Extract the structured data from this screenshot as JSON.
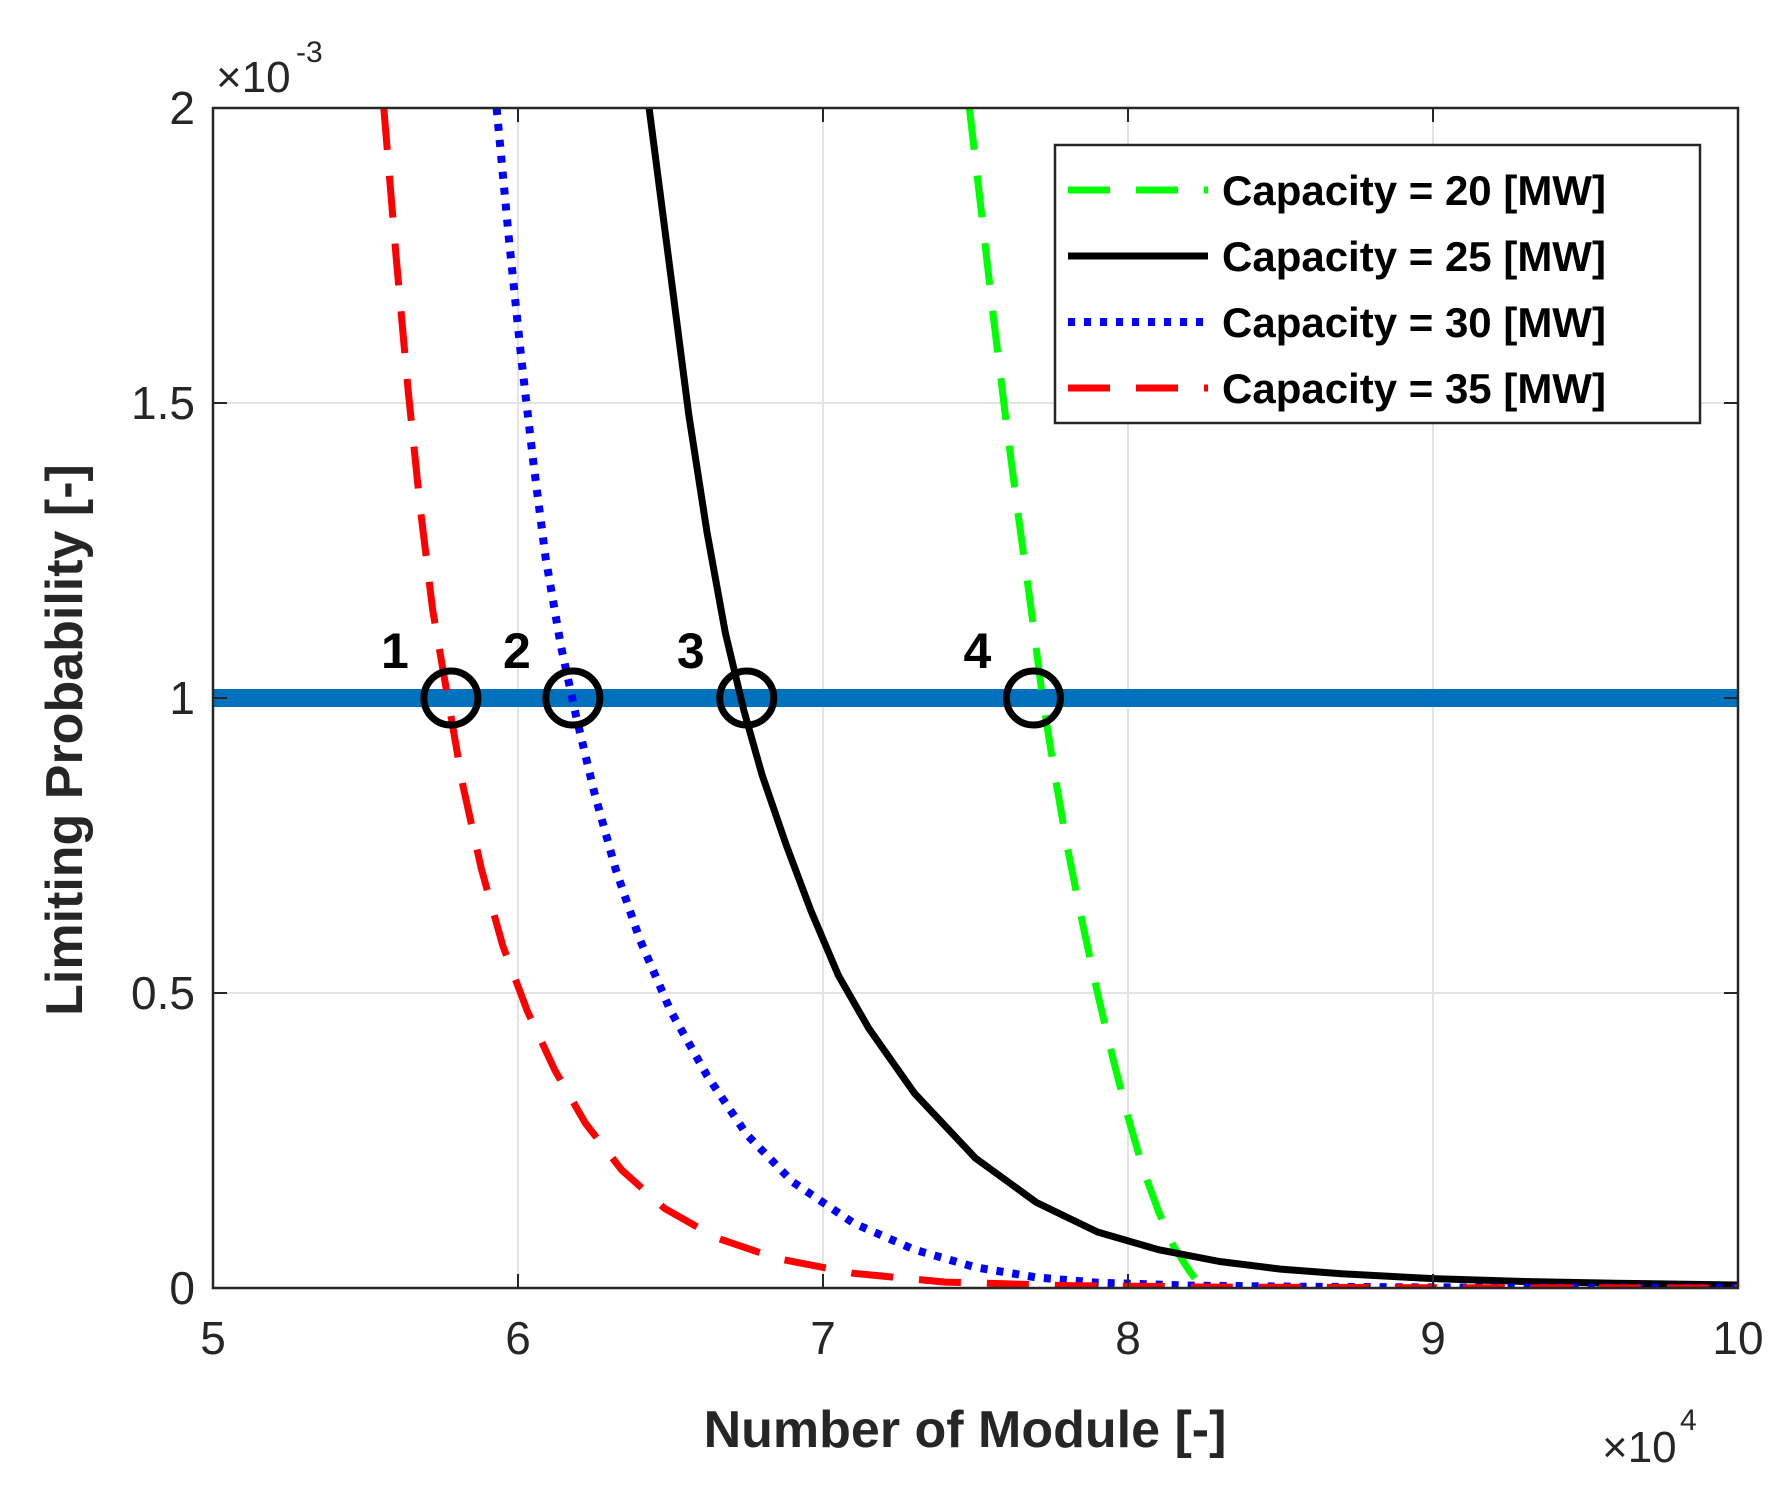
{
  "chart_data": {
    "type": "line",
    "title": "",
    "xlabel": "Number of Module [-]",
    "ylabel": "Limiting Probability [-]",
    "x_multiplier_label": "×10",
    "x_multiplier_exp": "4",
    "y_multiplier_label": "×10",
    "y_multiplier_exp": "-3",
    "xlim": [
      5,
      10
    ],
    "ylim": [
      0,
      2
    ],
    "x_ticks": [
      5,
      6,
      7,
      8,
      9,
      10
    ],
    "x_tick_labels": [
      "5",
      "6",
      "7",
      "8",
      "9",
      "10"
    ],
    "y_ticks": [
      0,
      0.5,
      1,
      1.5,
      2
    ],
    "y_tick_labels": [
      "0",
      "0.5",
      "1",
      "1.5",
      "2"
    ],
    "grid": true,
    "legend_position": "top-right",
    "reference_line": {
      "y": 1.0,
      "color": "#0072BD"
    },
    "series": [
      {
        "name": "Capacity = 20 [MW]",
        "color": "#00FF00",
        "style": "dashed",
        "x": [
          7.48,
          7.52,
          7.56,
          7.6,
          7.64,
          7.68,
          7.72,
          7.76,
          7.8,
          7.85,
          7.9,
          7.95,
          8.0,
          8.05,
          8.1,
          8.15,
          8.2,
          8.235,
          8.26
        ],
        "y": [
          2.0,
          1.82,
          1.64,
          1.47,
          1.31,
          1.16,
          1.0,
          0.87,
          0.75,
          0.62,
          0.5,
          0.39,
          0.29,
          0.2,
          0.13,
          0.07,
          0.03,
          0.005,
          0.0
        ]
      },
      {
        "name": "Capacity = 25 [MW]",
        "color": "#000000",
        "style": "solid",
        "x": [
          6.43,
          6.5,
          6.56,
          6.62,
          6.68,
          6.74,
          6.8,
          6.88,
          6.96,
          7.05,
          7.15,
          7.3,
          7.5,
          7.7,
          7.9,
          8.1,
          8.3,
          8.5,
          8.7,
          9.0,
          9.3,
          9.6,
          10.0
        ],
        "y": [
          2.0,
          1.72,
          1.48,
          1.28,
          1.11,
          0.98,
          0.87,
          0.75,
          0.64,
          0.53,
          0.44,
          0.33,
          0.22,
          0.145,
          0.095,
          0.065,
          0.045,
          0.032,
          0.024,
          0.016,
          0.011,
          0.008,
          0.005
        ]
      },
      {
        "name": "Capacity = 30 [MW]",
        "color": "#0000FF",
        "style": "dotted",
        "x": [
          5.93,
          5.97,
          6.01,
          6.05,
          6.09,
          6.14,
          6.19,
          6.25,
          6.32,
          6.4,
          6.5,
          6.62,
          6.75,
          6.9,
          7.1,
          7.3,
          7.5,
          7.7,
          7.9,
          8.2,
          8.6,
          9.0,
          9.5,
          10.0
        ],
        "y": [
          2.0,
          1.78,
          1.58,
          1.4,
          1.24,
          1.09,
          0.97,
          0.84,
          0.71,
          0.59,
          0.47,
          0.36,
          0.26,
          0.18,
          0.11,
          0.065,
          0.035,
          0.018,
          0.009,
          0.004,
          0.002,
          0.001,
          0.0005,
          0.0002
        ]
      },
      {
        "name": "Capacity = 35 [MW]",
        "color": "#FF0000",
        "style": "dashed",
        "x": [
          5.56,
          5.6,
          5.64,
          5.68,
          5.72,
          5.77,
          5.82,
          5.88,
          5.95,
          6.03,
          6.12,
          6.22,
          6.34,
          6.48,
          6.65,
          6.85,
          7.1,
          7.4,
          7.8,
          8.3,
          9.0,
          10.0
        ],
        "y": [
          2.0,
          1.75,
          1.52,
          1.32,
          1.15,
          1.0,
          0.85,
          0.71,
          0.58,
          0.47,
          0.37,
          0.28,
          0.2,
          0.135,
          0.085,
          0.05,
          0.025,
          0.01,
          0.004,
          0.0015,
          0.0005,
          0.0001
        ]
      }
    ],
    "markers": [
      {
        "label": "1",
        "x": 5.78,
        "y": 1.0
      },
      {
        "label": "2",
        "x": 6.18,
        "y": 1.0
      },
      {
        "label": "3",
        "x": 6.75,
        "y": 1.0
      },
      {
        "label": "4",
        "x": 7.69,
        "y": 1.0
      }
    ]
  }
}
